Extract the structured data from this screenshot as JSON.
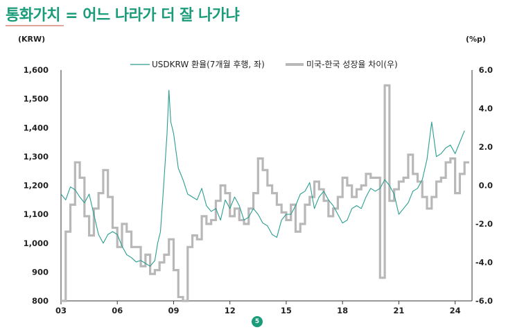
{
  "title": "통화가치 = 어느 나라가 더 잘 나가냐",
  "page_number": "5",
  "colors": {
    "title": "#1a9c7a",
    "fx_line": "#2a9d8f",
    "gap_line": "#b8b8b8"
  },
  "chart_data": {
    "type": "line",
    "left_axis_unit": "(KRW)",
    "right_axis_unit": "(%p)",
    "x_ticks": [
      "03",
      "06",
      "09",
      "12",
      "15",
      "18",
      "21",
      "24"
    ],
    "y_left_ticks": [
      "1,600",
      "1,500",
      "1,400",
      "1,300",
      "1,200",
      "1,100",
      "1,000",
      "900",
      "800"
    ],
    "y_right_ticks": [
      "6.0",
      "4.0",
      "2.0",
      "0.0",
      "-2.0",
      "-4.0",
      "-6.0"
    ],
    "ylim_left": [
      800,
      1600
    ],
    "ylim_right": [
      -6,
      6
    ],
    "xlim": [
      2003.0,
      2024.9
    ],
    "legend_position": "top-center",
    "series": [
      {
        "name": "USDKRW 환율(7개월 후행, 좌)",
        "axis": "left",
        "x": [
          2003.0,
          2003.25,
          2003.5,
          2003.75,
          2004.0,
          2004.25,
          2004.5,
          2004.75,
          2005.0,
          2005.25,
          2005.5,
          2005.75,
          2006.0,
          2006.25,
          2006.5,
          2006.75,
          2007.0,
          2007.25,
          2007.5,
          2007.75,
          2008.0,
          2008.15,
          2008.3,
          2008.45,
          2008.55,
          2008.65,
          2008.75,
          2008.85,
          2009.0,
          2009.25,
          2009.5,
          2009.75,
          2010.0,
          2010.25,
          2010.5,
          2010.75,
          2011.0,
          2011.25,
          2011.5,
          2011.75,
          2012.0,
          2012.25,
          2012.5,
          2012.75,
          2013.0,
          2013.25,
          2013.5,
          2013.75,
          2014.0,
          2014.25,
          2014.5,
          2014.75,
          2015.0,
          2015.25,
          2015.5,
          2015.75,
          2016.0,
          2016.25,
          2016.5,
          2016.75,
          2017.0,
          2017.25,
          2017.5,
          2017.75,
          2018.0,
          2018.25,
          2018.5,
          2018.75,
          2019.0,
          2019.25,
          2019.5,
          2019.75,
          2020.0,
          2020.25,
          2020.5,
          2020.75,
          2021.0,
          2021.25,
          2021.5,
          2021.75,
          2022.0,
          2022.25,
          2022.5,
          2022.75,
          2023.0,
          2023.25,
          2023.5,
          2023.75,
          2024.0,
          2024.25,
          2024.5
        ],
        "values": [
          1170,
          1150,
          1195,
          1185,
          1160,
          1140,
          1170,
          1100,
          1030,
          1000,
          1030,
          1040,
          1030,
          990,
          960,
          950,
          935,
          940,
          930,
          920,
          940,
          1000,
          1040,
          1180,
          1280,
          1380,
          1530,
          1420,
          1380,
          1260,
          1220,
          1170,
          1160,
          1150,
          1190,
          1130,
          1110,
          1120,
          1080,
          1150,
          1120,
          1160,
          1130,
          1080,
          1090,
          1120,
          1100,
          1070,
          1060,
          1030,
          1020,
          1080,
          1100,
          1100,
          1130,
          1170,
          1180,
          1210,
          1120,
          1160,
          1180,
          1150,
          1130,
          1100,
          1070,
          1080,
          1120,
          1130,
          1120,
          1160,
          1190,
          1180,
          1190,
          1220,
          1200,
          1170,
          1100,
          1120,
          1140,
          1180,
          1190,
          1220,
          1290,
          1420,
          1300,
          1310,
          1330,
          1340,
          1310,
          1350,
          1390
        ]
      },
      {
        "name": "미국-한국 성장율 차이(우)",
        "axis": "right",
        "x": [
          2003.0,
          2003.25,
          2003.5,
          2003.75,
          2004.0,
          2004.25,
          2004.5,
          2004.75,
          2005.0,
          2005.25,
          2005.5,
          2005.75,
          2006.0,
          2006.25,
          2006.5,
          2006.75,
          2007.0,
          2007.25,
          2007.5,
          2007.75,
          2008.0,
          2008.25,
          2008.5,
          2008.75,
          2009.0,
          2009.25,
          2009.5,
          2009.75,
          2010.0,
          2010.25,
          2010.5,
          2010.75,
          2011.0,
          2011.25,
          2011.5,
          2011.75,
          2012.0,
          2012.25,
          2012.5,
          2012.75,
          2013.0,
          2013.25,
          2013.5,
          2013.75,
          2014.0,
          2014.25,
          2014.5,
          2014.75,
          2015.0,
          2015.25,
          2015.5,
          2015.75,
          2016.0,
          2016.25,
          2016.5,
          2016.75,
          2017.0,
          2017.25,
          2017.5,
          2017.75,
          2018.0,
          2018.25,
          2018.5,
          2018.75,
          2019.0,
          2019.25,
          2019.5,
          2019.75,
          2020.0,
          2020.25,
          2020.5,
          2020.75,
          2021.0,
          2021.25,
          2021.5,
          2021.75,
          2022.0,
          2022.25,
          2022.5,
          2022.75,
          2023.0,
          2023.25,
          2023.5,
          2023.75,
          2024.0,
          2024.25,
          2024.5,
          2024.75
        ],
        "values": [
          -6.0,
          -2.4,
          -1.0,
          1.2,
          0.4,
          -1.6,
          -2.6,
          -1.2,
          -0.4,
          0.8,
          -0.6,
          -2.2,
          -3.2,
          -2.0,
          -2.4,
          -3.2,
          -3.2,
          -4.2,
          -3.6,
          -4.6,
          -4.4,
          -4.0,
          -3.6,
          -2.8,
          -4.4,
          -5.8,
          -6.0,
          -3.2,
          -2.6,
          -2.8,
          -1.6,
          -2.0,
          -1.8,
          -0.8,
          0.0,
          -0.4,
          -1.6,
          -1.2,
          -1.8,
          -2.0,
          -1.2,
          -0.4,
          1.4,
          0.8,
          0.0,
          -0.4,
          -1.0,
          -1.4,
          -1.8,
          -1.0,
          -2.4,
          -2.0,
          -1.0,
          -0.6,
          0.2,
          -0.2,
          -0.8,
          -1.6,
          -1.2,
          -0.6,
          0.4,
          0.0,
          -0.6,
          -0.2,
          0.0,
          0.6,
          0.4,
          0.4,
          -4.8,
          5.2,
          -0.8,
          -0.2,
          0.2,
          0.4,
          1.6,
          0.6,
          0.2,
          -0.6,
          -1.2,
          -0.6,
          0.2,
          0.4,
          1.2,
          1.4,
          -0.4,
          0.6,
          1.2,
          1.2
        ]
      }
    ]
  }
}
